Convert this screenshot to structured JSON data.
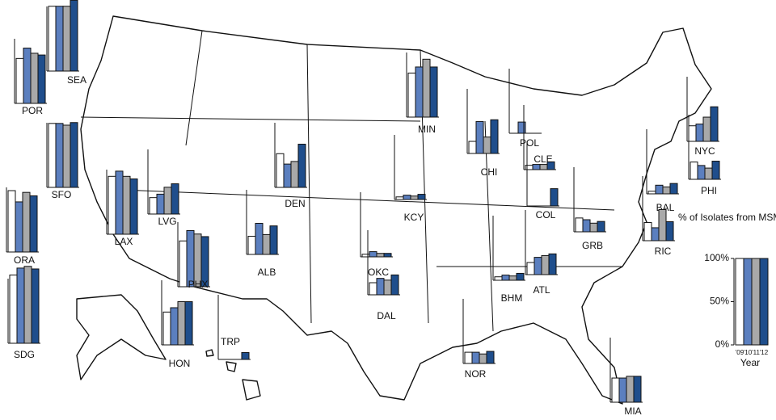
{
  "chart_data": {
    "type": "bar",
    "y_label": "% of Isolates from MSM*",
    "x_label": "Year",
    "categories": [
      "'09",
      "'10",
      "'11",
      "'12"
    ],
    "colors": [
      "#ffffff",
      "#5b7fbf",
      "#a9a9a9",
      "#1f4e8c"
    ],
    "ylim": [
      0,
      100
    ],
    "yticks": [
      {
        "value": 0,
        "label": "0%"
      },
      {
        "value": 50,
        "label": "50%"
      },
      {
        "value": 100,
        "label": "100%"
      }
    ],
    "sites": [
      {
        "name": "SEA",
        "values": [
          75,
          75,
          75,
          82
        ]
      },
      {
        "name": "POR",
        "values": [
          52,
          64,
          58,
          56
        ]
      },
      {
        "name": "SFO",
        "values": [
          74,
          74,
          72,
          75
        ]
      },
      {
        "name": "ORA",
        "values": [
          71,
          58,
          69,
          65
        ]
      },
      {
        "name": "SDG",
        "values": [
          79,
          87,
          89,
          86
        ]
      },
      {
        "name": "LAX",
        "values": [
          67,
          73,
          67,
          64
        ]
      },
      {
        "name": "LVG",
        "values": [
          19,
          23,
          31,
          35
        ]
      },
      {
        "name": "PHX",
        "values": [
          53,
          65,
          61,
          58
        ]
      },
      {
        "name": "ALB",
        "values": [
          21,
          36,
          23,
          33
        ]
      },
      {
        "name": "DEN",
        "values": [
          39,
          27,
          30,
          50
        ]
      },
      {
        "name": "MIN",
        "values": [
          51,
          58,
          67,
          58
        ]
      },
      {
        "name": "CHI",
        "values": [
          14,
          37,
          19,
          39
        ]
      },
      {
        "name": "POL",
        "values": [
          null,
          13,
          null,
          null
        ]
      },
      {
        "name": "CLE",
        "values": [
          5,
          6,
          6,
          9
        ]
      },
      {
        "name": "COL",
        "values": [
          null,
          null,
          null,
          20
        ]
      },
      {
        "name": "KCY",
        "values": [
          3,
          5,
          4,
          6
        ]
      },
      {
        "name": "OKC",
        "values": [
          3,
          6,
          4,
          4
        ]
      },
      {
        "name": "DAL",
        "values": [
          14,
          19,
          17,
          23
        ]
      },
      {
        "name": "BHM",
        "values": [
          4,
          6,
          5,
          8
        ]
      },
      {
        "name": "ATL",
        "values": [
          14,
          20,
          22,
          24
        ]
      },
      {
        "name": "GRB",
        "values": [
          16,
          14,
          10,
          12
        ]
      },
      {
        "name": "BAL",
        "values": [
          3,
          10,
          8,
          12
        ]
      },
      {
        "name": "RIC",
        "values": [
          21,
          15,
          36,
          22
        ]
      },
      {
        "name": "PHI",
        "values": [
          20,
          16,
          13,
          21
        ]
      },
      {
        "name": "NYC",
        "values": [
          18,
          20,
          28,
          40
        ]
      },
      {
        "name": "NOR",
        "values": [
          13,
          13,
          11,
          14
        ]
      },
      {
        "name": "MIA",
        "values": [
          28,
          28,
          30,
          30
        ]
      },
      {
        "name": "HON",
        "values": [
          38,
          43,
          50,
          50
        ]
      },
      {
        "name": "TRP",
        "values": [
          null,
          null,
          null,
          8
        ]
      }
    ]
  }
}
